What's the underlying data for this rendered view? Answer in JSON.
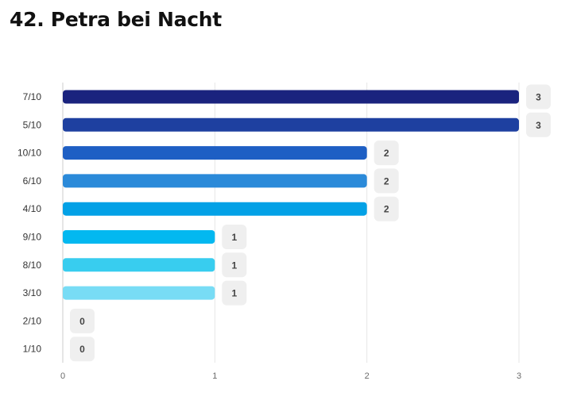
{
  "title": "42. Petra bei Nacht",
  "chart_data": {
    "type": "bar",
    "orientation": "horizontal",
    "categories": [
      "7/10",
      "5/10",
      "10/10",
      "6/10",
      "4/10",
      "9/10",
      "8/10",
      "3/10",
      "2/10",
      "1/10"
    ],
    "values": [
      3,
      3,
      2,
      2,
      2,
      1,
      1,
      1,
      0,
      0
    ],
    "colors": [
      "#1a237e",
      "#1e40a0",
      "#1e5fc4",
      "#2b8ad9",
      "#03a1e6",
      "#03b8f0",
      "#38cdef",
      "#78dcf5",
      "#c8eefa",
      "#e0f5fc"
    ],
    "xlim": [
      0,
      3
    ],
    "xticks": [
      0,
      1,
      2,
      3
    ],
    "grid": true,
    "data_labels": true,
    "label_box_color": "#efefef"
  }
}
